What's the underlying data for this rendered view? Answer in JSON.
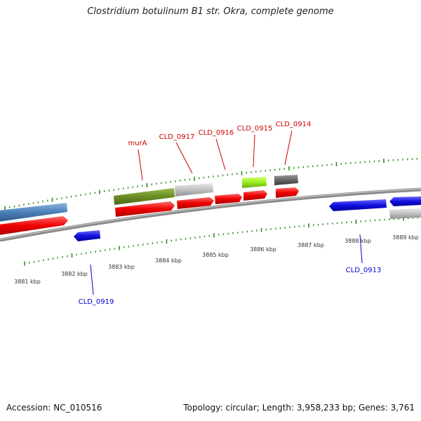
{
  "title": "Clostridium botulinum B1 str. Okra, complete genome",
  "footer": {
    "accession": "Accession: NC_010516",
    "summary": "Topology: circular; Length: 3,958,233 bp; Genes: 3,761"
  },
  "colors": {
    "backbone": "#8a8a8a",
    "tick": "#2e8b22",
    "forward_cds": "#ee0000",
    "reverse_cds": "#1010dd",
    "forward_label": "#cc0000",
    "reverse_label": "#0000cc",
    "scale_label": "#333333"
  },
  "scale_labels": [
    "3881 kbp",
    "3882 kbp",
    "3883 kbp",
    "3884 kbp",
    "3885 kbp",
    "3886 kbp",
    "3887 kbp",
    "3888 kbp",
    "3889 kbp"
  ],
  "gene_labels": {
    "forward": [
      "murA",
      "CLD_0917",
      "CLD_0916",
      "CLD_0915",
      "CLD_0914"
    ],
    "reverse": [
      "CLD_0919",
      "CLD_0913"
    ]
  },
  "features": [
    {
      "track": "cog",
      "color": "#4a7fb8"
    },
    {
      "track": "cog",
      "color": "#6b8e23"
    },
    {
      "track": "cog",
      "color": "#c0c0c0"
    },
    {
      "track": "cog",
      "color": "#9aee22"
    },
    {
      "track": "cog",
      "color": "#666666"
    },
    {
      "track": "cog",
      "color": "#c0c0c0"
    }
  ]
}
